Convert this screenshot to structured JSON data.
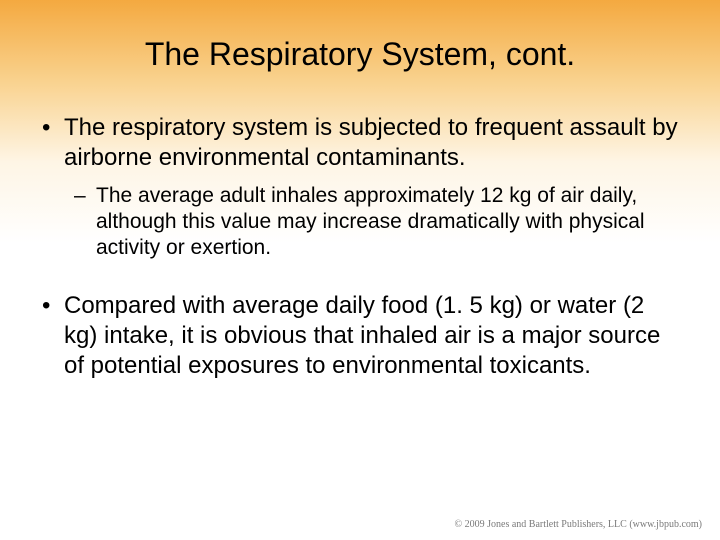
{
  "slide": {
    "title": "The Respiratory System, cont.",
    "bullets": [
      {
        "level": 1,
        "text": "The respiratory system is subjected to frequent assault by airborne environmental contaminants."
      },
      {
        "level": 2,
        "text": "The average adult inhales approximately 12 kg of air daily, although this value may increase dramatically with physical activity or exertion."
      },
      {
        "level": 1,
        "text": "Compared with average daily food (1. 5 kg) or water (2 kg) intake, it is obvious that inhaled air is a major source of potential exposures to environmental toxicants."
      }
    ],
    "footer": "© 2009 Jones and Bartlett Publishers, LLC (www.jbpub.com)"
  },
  "style": {
    "background_gradient_top": "#f4a940",
    "background_gradient_mid": "#fef5e5",
    "background_gradient_bottom": "#ffffff",
    "title_fontsize": 32,
    "main_bullet_fontsize": 24,
    "sub_bullet_fontsize": 21,
    "text_color": "#000000",
    "footer_color": "#7a7a7a",
    "footer_fontsize": 10
  }
}
